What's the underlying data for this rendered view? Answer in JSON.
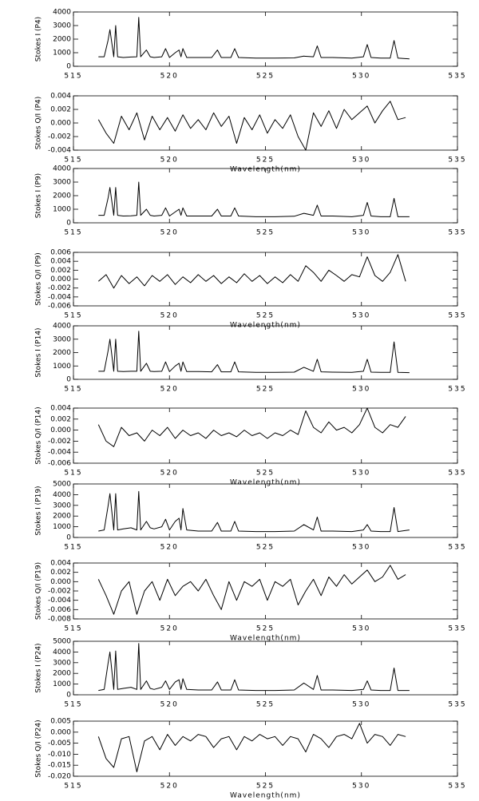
{
  "chart_data": [
    {
      "type": "line",
      "ylabel": "Stokes I (P4)",
      "color": "#000000",
      "x": [
        516.3,
        516.6,
        516.8,
        516.9,
        517.1,
        517.2,
        517.3,
        517.6,
        518.0,
        518.3,
        518.4,
        518.5,
        518.8,
        519.0,
        519.2,
        519.6,
        519.8,
        520.0,
        520.3,
        520.5,
        520.6,
        520.7,
        520.9,
        521.5,
        522.2,
        522.5,
        522.7,
        523.2,
        523.4,
        523.6,
        524.5,
        525.5,
        526.5,
        527.0,
        527.5,
        527.7,
        527.9,
        528.5,
        529.5,
        530.1,
        530.3,
        530.5,
        531.0,
        531.5,
        531.7,
        531.9,
        532.5
      ],
      "values": [
        700,
        700,
        1900,
        2700,
        700,
        3000,
        700,
        650,
        680,
        700,
        3600,
        700,
        1200,
        700,
        650,
        700,
        1300,
        650,
        1000,
        1200,
        700,
        1300,
        650,
        650,
        650,
        1200,
        650,
        650,
        1300,
        650,
        600,
        600,
        620,
        750,
        700,
        1500,
        650,
        650,
        600,
        700,
        1600,
        650,
        600,
        600,
        1900,
        600,
        550
      ],
      "xlim": [
        515,
        535
      ],
      "xticks": [
        515,
        520,
        525,
        530,
        535
      ],
      "ylim": [
        0,
        4000
      ],
      "yticks": [
        0,
        1000,
        2000,
        3000,
        4000
      ]
    },
    {
      "type": "line",
      "ylabel": "Stokes Q/I (P4)",
      "xlabel": "Wavelength(nm)",
      "color": "#000000",
      "x": [
        516.3,
        516.7,
        517.1,
        517.5,
        517.9,
        518.3,
        518.7,
        519.1,
        519.5,
        519.9,
        520.3,
        520.7,
        521.1,
        521.5,
        521.9,
        522.3,
        522.7,
        523.1,
        523.5,
        523.9,
        524.3,
        524.7,
        525.1,
        525.5,
        525.9,
        526.3,
        526.7,
        527.1,
        527.5,
        527.9,
        528.3,
        528.7,
        529.1,
        529.5,
        529.9,
        530.3,
        530.7,
        531.1,
        531.5,
        531.9,
        532.3
      ],
      "values": [
        0.0005,
        -0.0015,
        -0.003,
        0.001,
        -0.001,
        0.0015,
        -0.0025,
        0.001,
        -0.001,
        0.0008,
        -0.0012,
        0.0012,
        -0.0008,
        0.0005,
        -0.001,
        0.0015,
        -0.0005,
        0.001,
        -0.003,
        0.0008,
        -0.001,
        0.0012,
        -0.0015,
        0.0005,
        -0.0008,
        0.0012,
        -0.002,
        -0.004,
        0.0015,
        -0.0005,
        0.0018,
        -0.0008,
        0.002,
        0.0005,
        0.0015,
        0.0025,
        0,
        0.0018,
        0.0032,
        0.0005,
        0.0008
      ],
      "xlim": [
        515,
        535
      ],
      "xticks": [
        515,
        520,
        525,
        530,
        535
      ],
      "ylim": [
        -0.004,
        0.004
      ],
      "yticks": [
        -0.004,
        -0.002,
        {
          "value": 0,
          "label": "0.000"
        },
        0.002,
        0.004
      ]
    },
    {
      "type": "line",
      "ylabel": "Stokes I (P9)",
      "color": "#000000",
      "x": [
        516.3,
        516.6,
        516.8,
        516.9,
        517.1,
        517.2,
        517.3,
        517.6,
        518.0,
        518.3,
        518.4,
        518.5,
        518.8,
        519.0,
        519.2,
        519.6,
        519.8,
        520.0,
        520.3,
        520.5,
        520.6,
        520.7,
        520.9,
        521.5,
        522.2,
        522.5,
        522.7,
        523.2,
        523.4,
        523.6,
        524.5,
        525.5,
        526.5,
        527.0,
        527.5,
        527.7,
        527.9,
        528.5,
        529.5,
        530.1,
        530.3,
        530.5,
        531.0,
        531.5,
        531.7,
        531.9,
        532.5
      ],
      "values": [
        550,
        550,
        1800,
        2600,
        550,
        2600,
        550,
        500,
        520,
        550,
        3000,
        550,
        1000,
        550,
        500,
        550,
        1100,
        500,
        800,
        1000,
        550,
        1100,
        500,
        500,
        500,
        1000,
        500,
        500,
        1100,
        500,
        450,
        450,
        480,
        700,
        550,
        1300,
        500,
        500,
        450,
        550,
        1500,
        500,
        450,
        450,
        1800,
        450,
        450
      ],
      "xlim": [
        515,
        535
      ],
      "xticks": [
        515,
        520,
        525,
        530,
        535
      ],
      "ylim": [
        0,
        4000
      ],
      "yticks": [
        0,
        1000,
        2000,
        3000,
        4000
      ]
    },
    {
      "type": "line",
      "ylabel": "Stokes Q/I (P9)",
      "xlabel": "Wavelength(nm)",
      "color": "#000000",
      "x": [
        516.3,
        516.7,
        517.1,
        517.5,
        517.9,
        518.3,
        518.7,
        519.1,
        519.5,
        519.9,
        520.3,
        520.7,
        521.1,
        521.5,
        521.9,
        522.3,
        522.7,
        523.1,
        523.5,
        523.9,
        524.3,
        524.7,
        525.1,
        525.5,
        525.9,
        526.3,
        526.7,
        527.1,
        527.5,
        527.9,
        528.3,
        528.7,
        529.1,
        529.5,
        529.9,
        530.3,
        530.7,
        531.1,
        531.5,
        531.9,
        532.3
      ],
      "values": [
        -0.0005,
        0.001,
        -0.002,
        0.0008,
        -0.001,
        0.0005,
        -0.0015,
        0.0008,
        -0.0005,
        0.001,
        -0.0012,
        0.0005,
        -0.0008,
        0.001,
        -0.0005,
        0.0008,
        -0.001,
        0.0005,
        -0.0008,
        0.0012,
        -0.0005,
        0.0008,
        -0.001,
        0.0005,
        -0.0008,
        0.001,
        -0.0005,
        0.003,
        0.0015,
        -0.0005,
        0.002,
        0.0008,
        -0.0005,
        0.001,
        0.0005,
        0.005,
        0.0008,
        -0.0005,
        0.0015,
        0.0055,
        -0.0005
      ],
      "xlim": [
        515,
        535
      ],
      "xticks": [
        515,
        520,
        525,
        530,
        535
      ],
      "ylim": [
        -0.006,
        0.006
      ],
      "yticks": [
        -0.006,
        -0.004,
        -0.002,
        {
          "value": 0,
          "label": "0.000"
        },
        0.002,
        0.004,
        0.006
      ]
    },
    {
      "type": "line",
      "ylabel": "Stokes I (P14)",
      "color": "#000000",
      "x": [
        516.3,
        516.6,
        516.8,
        516.9,
        517.1,
        517.2,
        517.3,
        517.6,
        518.0,
        518.3,
        518.4,
        518.5,
        518.8,
        519.0,
        519.2,
        519.6,
        519.8,
        520.0,
        520.3,
        520.5,
        520.6,
        520.7,
        520.9,
        521.5,
        522.2,
        522.5,
        522.7,
        523.2,
        523.4,
        523.6,
        524.5,
        525.5,
        526.5,
        527.0,
        527.5,
        527.7,
        527.9,
        528.5,
        529.5,
        530.1,
        530.3,
        530.5,
        531.0,
        531.5,
        531.7,
        531.9,
        532.5
      ],
      "values": [
        600,
        600,
        2100,
        3000,
        600,
        3000,
        600,
        580,
        600,
        600,
        3600,
        600,
        1200,
        600,
        580,
        600,
        1300,
        580,
        1000,
        1200,
        600,
        1300,
        580,
        580,
        560,
        1100,
        560,
        560,
        1300,
        560,
        520,
        520,
        540,
        900,
        600,
        1500,
        560,
        540,
        520,
        600,
        1500,
        540,
        520,
        520,
        2800,
        520,
        500
      ],
      "xlim": [
        515,
        535
      ],
      "xticks": [
        515,
        520,
        525,
        530,
        535
      ],
      "ylim": [
        0,
        4000
      ],
      "yticks": [
        0,
        1000,
        2000,
        3000,
        4000
      ]
    },
    {
      "type": "line",
      "ylabel": "Stokes Q/I (P14)",
      "xlabel": "Wavelength(nm)",
      "color": "#000000",
      "x": [
        516.3,
        516.7,
        517.1,
        517.5,
        517.9,
        518.3,
        518.7,
        519.1,
        519.5,
        519.9,
        520.3,
        520.7,
        521.1,
        521.5,
        521.9,
        522.3,
        522.7,
        523.1,
        523.5,
        523.9,
        524.3,
        524.7,
        525.1,
        525.5,
        525.9,
        526.3,
        526.7,
        527.1,
        527.5,
        527.9,
        528.3,
        528.7,
        529.1,
        529.5,
        529.9,
        530.3,
        530.7,
        531.1,
        531.5,
        531.9,
        532.3
      ],
      "values": [
        0.001,
        -0.002,
        -0.003,
        0.0005,
        -0.001,
        -0.0005,
        -0.002,
        0,
        -0.001,
        0.0005,
        -0.0015,
        0,
        -0.001,
        -0.0005,
        -0.0015,
        0,
        -0.001,
        -0.0005,
        -0.0012,
        0,
        -0.001,
        -0.0005,
        -0.0015,
        -0.0005,
        -0.001,
        0,
        -0.0008,
        0.0035,
        0.0005,
        -0.0005,
        0.0015,
        0,
        0.0005,
        -0.0005,
        0.001,
        0.004,
        0.0005,
        -0.0005,
        0.001,
        0.0005,
        0.0025
      ],
      "xlim": [
        515,
        535
      ],
      "xticks": [
        515,
        520,
        525,
        530,
        535
      ],
      "ylim": [
        -0.006,
        0.004
      ],
      "yticks": [
        -0.006,
        -0.004,
        -0.002,
        {
          "value": 0,
          "label": "0.000"
        },
        0.002,
        0.004
      ]
    },
    {
      "type": "line",
      "ylabel": "Stokes I (P19)",
      "color": "#000000",
      "x": [
        516.3,
        516.6,
        516.8,
        516.9,
        517.1,
        517.2,
        517.3,
        517.6,
        518.0,
        518.3,
        518.4,
        518.5,
        518.8,
        519.0,
        519.2,
        519.6,
        519.8,
        520.0,
        520.3,
        520.5,
        520.6,
        520.7,
        520.9,
        521.5,
        522.2,
        522.5,
        522.7,
        523.2,
        523.4,
        523.6,
        524.5,
        525.5,
        526.5,
        527.0,
        527.5,
        527.7,
        527.9,
        528.5,
        529.5,
        530.1,
        530.3,
        530.5,
        531.0,
        531.5,
        531.7,
        531.9,
        532.5
      ],
      "values": [
        600,
        700,
        2900,
        4100,
        700,
        4100,
        700,
        800,
        900,
        700,
        4300,
        700,
        1500,
        900,
        800,
        1000,
        1700,
        700,
        1500,
        1800,
        700,
        2700,
        700,
        600,
        600,
        1400,
        600,
        600,
        1500,
        600,
        550,
        550,
        600,
        1200,
        700,
        1900,
        600,
        600,
        550,
        700,
        1200,
        600,
        550,
        550,
        2800,
        550,
        700
      ],
      "xlim": [
        515,
        535
      ],
      "xticks": [
        515,
        520,
        525,
        530,
        535
      ],
      "ylim": [
        0,
        5000
      ],
      "yticks": [
        0,
        1000,
        2000,
        3000,
        4000,
        5000
      ]
    },
    {
      "type": "line",
      "ylabel": "Stokes Q/I (P19)",
      "xlabel": "Wavelength(nm)",
      "color": "#000000",
      "x": [
        516.3,
        516.7,
        517.1,
        517.5,
        517.9,
        518.3,
        518.7,
        519.1,
        519.5,
        519.9,
        520.3,
        520.7,
        521.1,
        521.5,
        521.9,
        522.3,
        522.7,
        523.1,
        523.5,
        523.9,
        524.3,
        524.7,
        525.1,
        525.5,
        525.9,
        526.3,
        526.7,
        527.1,
        527.5,
        527.9,
        528.3,
        528.7,
        529.1,
        529.5,
        529.9,
        530.3,
        530.7,
        531.1,
        531.5,
        531.9,
        532.3
      ],
      "values": [
        0.0005,
        -0.003,
        -0.007,
        -0.002,
        0,
        -0.007,
        -0.002,
        0,
        -0.004,
        0.0005,
        -0.003,
        -0.001,
        0,
        -0.002,
        0.0005,
        -0.003,
        -0.006,
        0,
        -0.004,
        0,
        -0.001,
        0.0005,
        -0.004,
        0,
        -0.001,
        0.0005,
        -0.005,
        -0.002,
        0.0005,
        -0.003,
        0.001,
        -0.001,
        0.0015,
        -0.0005,
        0.001,
        0.0025,
        0,
        0.001,
        0.0035,
        0.0005,
        0.0015
      ],
      "xlim": [
        515,
        535
      ],
      "xticks": [
        515,
        520,
        525,
        530,
        535
      ],
      "ylim": [
        -0.008,
        0.004
      ],
      "yticks": [
        -0.008,
        -0.006,
        -0.004,
        -0.002,
        {
          "value": 0,
          "label": "0.000"
        },
        0.002,
        0.004
      ]
    },
    {
      "type": "line",
      "ylabel": "Stokes I (P24)",
      "color": "#000000",
      "x": [
        516.3,
        516.6,
        516.8,
        516.9,
        517.1,
        517.2,
        517.3,
        517.6,
        518.0,
        518.3,
        518.4,
        518.5,
        518.8,
        519.0,
        519.2,
        519.6,
        519.8,
        520.0,
        520.3,
        520.5,
        520.6,
        520.7,
        520.9,
        521.5,
        522.2,
        522.5,
        522.7,
        523.2,
        523.4,
        523.6,
        524.5,
        525.5,
        526.5,
        527.0,
        527.5,
        527.7,
        527.9,
        528.5,
        529.5,
        530.1,
        530.3,
        530.5,
        531.0,
        531.5,
        531.7,
        531.9,
        532.5
      ],
      "values": [
        400,
        500,
        2900,
        4000,
        500,
        4100,
        500,
        600,
        700,
        500,
        4800,
        500,
        1300,
        600,
        500,
        700,
        1300,
        500,
        1200,
        1400,
        500,
        1500,
        500,
        450,
        450,
        1200,
        450,
        450,
        1400,
        450,
        400,
        400,
        450,
        1100,
        500,
        1800,
        450,
        450,
        400,
        500,
        1300,
        450,
        400,
        400,
        2500,
        400,
        400
      ],
      "xlim": [
        515,
        535
      ],
      "xticks": [
        515,
        520,
        525,
        530,
        535
      ],
      "ylim": [
        0,
        5000
      ],
      "yticks": [
        0,
        1000,
        2000,
        3000,
        4000,
        5000
      ]
    },
    {
      "type": "line",
      "ylabel": "Stokes Q/I (P24)",
      "xlabel": "Wavelength(nm)",
      "color": "#000000",
      "x": [
        516.3,
        516.7,
        517.1,
        517.5,
        517.9,
        518.3,
        518.7,
        519.1,
        519.5,
        519.9,
        520.3,
        520.7,
        521.1,
        521.5,
        521.9,
        522.3,
        522.7,
        523.1,
        523.5,
        523.9,
        524.3,
        524.7,
        525.1,
        525.5,
        525.9,
        526.3,
        526.7,
        527.1,
        527.5,
        527.9,
        528.3,
        528.7,
        529.1,
        529.5,
        529.9,
        530.3,
        530.7,
        531.1,
        531.5,
        531.9,
        532.3
      ],
      "values": [
        -0.002,
        -0.012,
        -0.016,
        -0.003,
        -0.002,
        -0.018,
        -0.004,
        -0.002,
        -0.008,
        -0.001,
        -0.006,
        -0.002,
        -0.004,
        -0.001,
        -0.002,
        -0.007,
        -0.003,
        -0.002,
        -0.008,
        -0.002,
        -0.004,
        -0.001,
        -0.003,
        -0.002,
        -0.006,
        -0.002,
        -0.003,
        -0.009,
        -0.001,
        -0.003,
        -0.007,
        -0.002,
        -0.001,
        -0.003,
        0.004,
        -0.005,
        -0.001,
        -0.002,
        -0.006,
        -0.001,
        -0.002
      ],
      "xlim": [
        515,
        535
      ],
      "xticks": [
        515,
        520,
        525,
        530,
        535
      ],
      "ylim": [
        -0.02,
        0.005
      ],
      "yticks": [
        {
          "value": -0.02,
          "label": "-0.020"
        },
        -0.015,
        {
          "value": -0.01,
          "label": "-0.010"
        },
        -0.005,
        {
          "value": 0,
          "label": "0.000"
        },
        0.005
      ]
    }
  ]
}
